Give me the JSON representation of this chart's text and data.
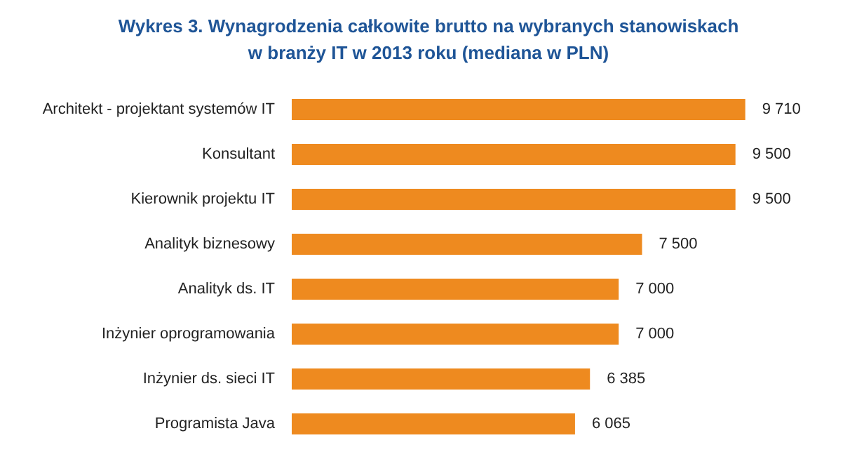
{
  "chart_data": {
    "type": "bar",
    "orientation": "horizontal",
    "title": "Wykres 3. Wynagrodzenia całkowite brutto na wybranych stanowiskach\nw branży IT w 2013 roku (mediana w PLN)",
    "categories": [
      "Architekt - projektant systemów IT",
      "Konsultant",
      "Kierownik projektu IT",
      "Analityk biznesowy",
      "Analityk ds. IT",
      "Inżynier oprogramowania",
      "Inżynier ds. sieci IT",
      "Programista Java"
    ],
    "values": [
      9710,
      9500,
      9500,
      7500,
      7000,
      7000,
      6385,
      6065
    ],
    "value_labels": [
      "9 710",
      "9 500",
      "9 500",
      "7 500",
      "7 000",
      "7 000",
      "6 385",
      "6 065"
    ],
    "color": "#ee8a1f",
    "tick_labels": "y",
    "grid": false
  }
}
